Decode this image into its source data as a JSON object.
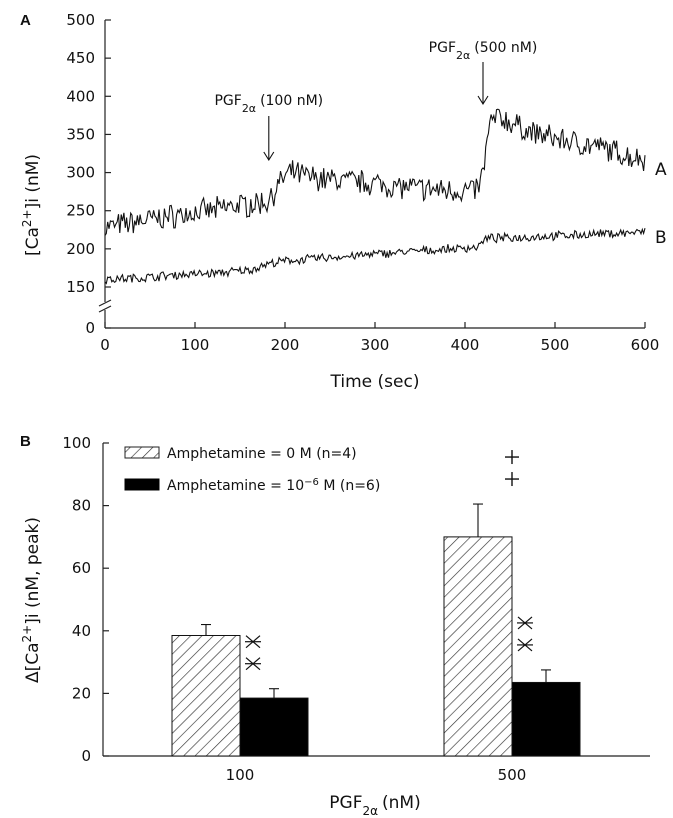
{
  "chart_data": [
    {
      "type": "line",
      "panel_label": "A",
      "xlabel": "Time (sec)",
      "ylabel": "[Ca2+]i (nM)",
      "xlim": [
        0,
        600
      ],
      "ylim": [
        0,
        500
      ],
      "axis_break": "between 0 and 150",
      "x_ticks": [
        0,
        100,
        200,
        300,
        400,
        500,
        600
      ],
      "y_ticks": [
        0,
        150,
        200,
        250,
        300,
        350,
        400,
        450,
        500
      ],
      "grid": false,
      "series": [
        {
          "name": "A",
          "x": [
            0,
            20,
            40,
            60,
            80,
            100,
            120,
            140,
            160,
            180,
            190,
            200,
            210,
            220,
            240,
            260,
            280,
            300,
            320,
            340,
            360,
            380,
            400,
            415,
            420,
            425,
            430,
            440,
            460,
            480,
            500,
            520,
            540,
            560,
            580,
            600
          ],
          "y": [
            228,
            232,
            237,
            240,
            244,
            248,
            250,
            256,
            258,
            262,
            278,
            295,
            300,
            296,
            292,
            290,
            288,
            286,
            282,
            280,
            278,
            277,
            276,
            279,
            300,
            345,
            370,
            372,
            360,
            350,
            345,
            340,
            335,
            330,
            322,
            318
          ]
        },
        {
          "name": "B",
          "x": [
            0,
            40,
            80,
            120,
            160,
            180,
            200,
            240,
            280,
            320,
            360,
            400,
            415,
            420,
            425,
            440,
            480,
            520,
            560,
            600
          ],
          "y": [
            160,
            162,
            166,
            168,
            172,
            180,
            184,
            188,
            191,
            195,
            198,
            201,
            203,
            210,
            214,
            214,
            216,
            218,
            220,
            222
          ]
        }
      ],
      "annotations": [
        {
          "label": "PGF",
          "sub": "2α",
          "text": "(100 nM)",
          "x": 182
        },
        {
          "label": "PGF",
          "sub": "2α",
          "text": "(500 nM)",
          "x": 420
        }
      ]
    },
    {
      "type": "bar",
      "panel_label": "B",
      "xlabel_main": "PGF",
      "xlabel_sub": "2α",
      "xlabel_unit": "(nM)",
      "ylabel": "Δ[Ca2+]i (nM, peak)",
      "ylim": [
        0,
        100
      ],
      "y_ticks": [
        0,
        20,
        40,
        60,
        80,
        100
      ],
      "categories": [
        "100",
        "500"
      ],
      "legend_position": "top-left",
      "series": [
        {
          "name": "Amphetamine = 0 M (n=4)",
          "legend_main": "Amphetamine = 0 M (n=4)",
          "pattern": "hatched",
          "values": [
            38.5,
            70
          ],
          "errors": [
            3.5,
            10.5
          ],
          "markers": [
            "",
            "++"
          ]
        },
        {
          "name": "Amphetamine = 10−6 M (n=6)",
          "legend_main": "Amphetamine = 10",
          "legend_sup": "−6",
          "legend_tail": " M (n=6)",
          "pattern": "solid",
          "values": [
            18.5,
            23.5
          ],
          "errors": [
            3,
            4
          ],
          "markers": [
            "**",
            "**"
          ]
        }
      ]
    }
  ]
}
